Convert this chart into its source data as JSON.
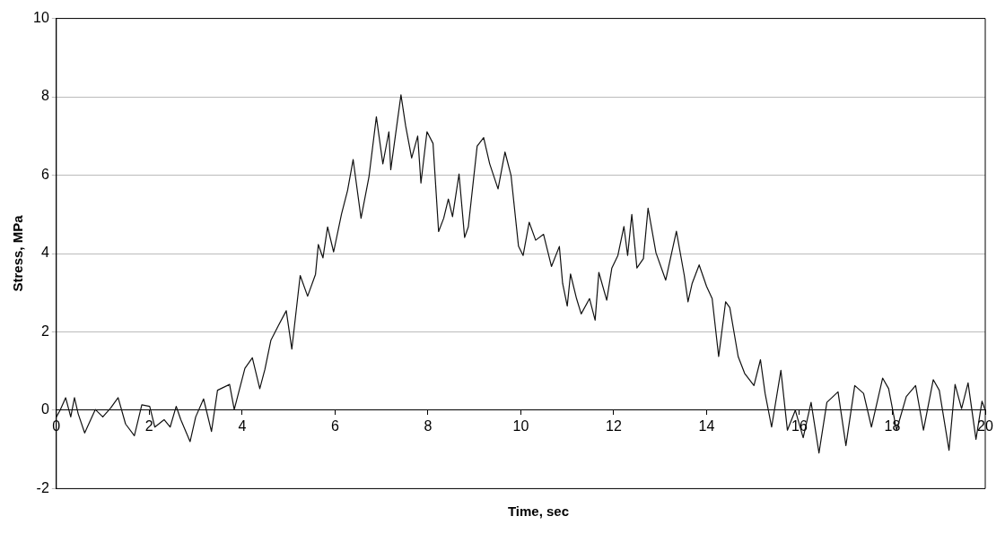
{
  "chart_data": {
    "type": "line",
    "xlabel": "Time, sec",
    "ylabel": "Stress, MPa",
    "xlim": [
      0,
      20
    ],
    "xticks": [
      0,
      2,
      4,
      6,
      8,
      10,
      12,
      14,
      16,
      18,
      20
    ],
    "ylim": [
      -2,
      10
    ],
    "yticks": [
      -2,
      0,
      2,
      4,
      6,
      8,
      10
    ],
    "grid": "y",
    "legend": false,
    "marker": "none",
    "line_style": "solid",
    "series": [
      {
        "color": "#111111",
        "x": [
          0,
          0.08,
          0.2,
          0.31,
          0.39,
          0.47,
          0.61,
          0.84,
          1.0,
          1.17,
          1.33,
          1.49,
          1.68,
          1.84,
          2.01,
          2.12,
          2.32,
          2.45,
          2.58,
          2.68,
          2.88,
          3.0,
          3.17,
          3.34,
          3.47,
          3.73,
          3.83,
          4.06,
          4.22,
          4.38,
          4.49,
          4.62,
          4.78,
          4.95,
          5.07,
          5.25,
          5.41,
          5.58,
          5.64,
          5.74,
          5.84,
          5.97,
          6.14,
          6.27,
          6.39,
          6.56,
          6.73,
          6.89,
          7.03,
          7.16,
          7.2,
          7.42,
          7.52,
          7.65,
          7.78,
          7.85,
          7.98,
          8.11,
          8.23,
          8.34,
          8.44,
          8.53,
          8.67,
          8.79,
          8.87,
          9.06,
          9.2,
          9.33,
          9.51,
          9.66,
          9.79,
          9.95,
          10.05,
          10.18,
          10.32,
          10.49,
          10.66,
          10.83,
          10.9,
          11.0,
          11.07,
          11.2,
          11.3,
          11.48,
          11.6,
          11.68,
          11.85,
          11.96,
          12.09,
          12.22,
          12.3,
          12.39,
          12.5,
          12.64,
          12.74,
          12.91,
          13.12,
          13.35,
          13.52,
          13.6,
          13.69,
          13.84,
          14.0,
          14.12,
          14.26,
          14.41,
          14.5,
          14.68,
          14.82,
          15.02,
          15.16,
          15.26,
          15.4,
          15.6,
          15.74,
          15.91,
          16.08,
          16.25,
          16.42,
          16.59,
          16.83,
          17.0,
          17.19,
          17.38,
          17.55,
          17.79,
          17.92,
          18.09,
          18.3,
          18.5,
          18.67,
          18.88,
          19.01,
          19.22,
          19.35,
          19.49,
          19.63,
          19.8,
          19.93,
          20.0
        ],
        "values": [
          -0.17,
          0,
          0.32,
          -0.17,
          0.32,
          -0.09,
          -0.58,
          0.02,
          -0.17,
          0.06,
          0.32,
          -0.35,
          -0.65,
          0.14,
          0.1,
          -0.43,
          -0.24,
          -0.43,
          0.1,
          -0.24,
          -0.8,
          -0.17,
          0.29,
          -0.54,
          0.51,
          0.66,
          0.02,
          1.07,
          1.34,
          0.55,
          1.04,
          1.79,
          2.16,
          2.54,
          1.56,
          3.44,
          2.91,
          3.47,
          4.23,
          3.89,
          4.68,
          4.04,
          5.01,
          5.61,
          6.4,
          4.9,
          5.95,
          7.49,
          6.29,
          7.11,
          6.14,
          8.05,
          7.26,
          6.44,
          7.0,
          5.8,
          7.11,
          6.81,
          4.56,
          4.9,
          5.39,
          4.94,
          6.03,
          4.41,
          4.68,
          6.74,
          6.96,
          6.29,
          5.65,
          6.59,
          5.99,
          4.19,
          3.95,
          4.8,
          4.34,
          4.49,
          3.67,
          4.18,
          3.24,
          2.66,
          3.48,
          2.85,
          2.46,
          2.85,
          2.3,
          3.52,
          2.81,
          3.63,
          3.95,
          4.69,
          3.95,
          5.0,
          3.63,
          3.87,
          5.16,
          4.02,
          3.32,
          4.57,
          3.44,
          2.77,
          3.24,
          3.71,
          3.16,
          2.85,
          1.37,
          2.77,
          2.62,
          1.37,
          0.94,
          0.63,
          1.29,
          0.43,
          -0.43,
          1.02,
          -0.51,
          0,
          -0.7,
          0.2,
          -1.09,
          0.2,
          0.47,
          -0.9,
          0.63,
          0.43,
          -0.43,
          0.82,
          0.55,
          -0.51,
          0.35,
          0.63,
          -0.51,
          0.78,
          0.51,
          -1.02,
          0.66,
          0.04,
          0.7,
          -0.74,
          0.23,
          0
        ]
      }
    ]
  }
}
